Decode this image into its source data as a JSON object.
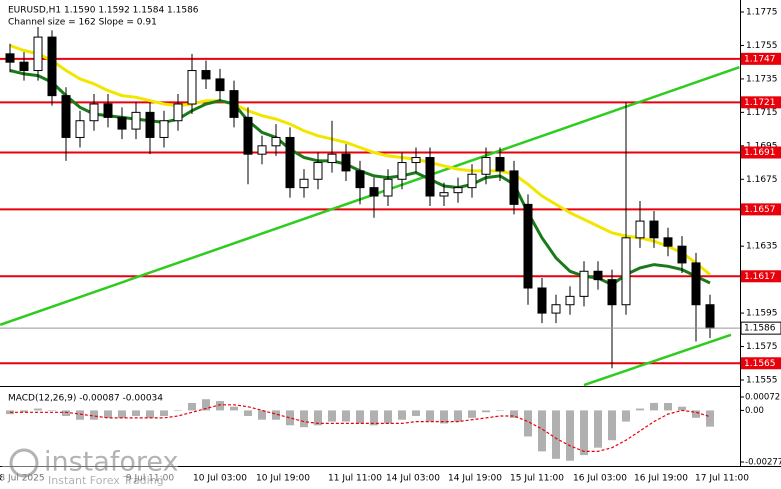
{
  "chart_data": {
    "type": "candlestick",
    "title": "EURUSD,H1  1.1590 1.1592 1.1584 1.1586",
    "subtitle": "Channel size = 162 Slope = 0.91",
    "ylim": [
      1.1555,
      1.1775
    ],
    "yticks": [
      1.1775,
      1.1755,
      1.1735,
      1.1715,
      1.1695,
      1.1675,
      1.1655,
      1.1635,
      1.1615,
      1.1595,
      1.1575,
      1.1555
    ],
    "levels": [
      1.1747,
      1.1721,
      1.1691,
      1.1657,
      1.1617,
      1.1565
    ],
    "level_color": "#e8000b",
    "last_price": 1.1586,
    "time_labels": [
      "8 Jul 2025",
      "9 Jul 11:00",
      "10 Jul 03:00",
      "10 Jul 19:00",
      "11 Jul 11:00",
      "14 Jul 03:00",
      "14 Jul 19:00",
      "15 Jul 11:00",
      "16 Jul 03:00",
      "16 Jul 19:00",
      "17 Jul 11:00"
    ],
    "open": [
      1.175,
      1.1745,
      1.174,
      1.176,
      1.1725,
      1.17,
      1.171,
      1.172,
      1.1712,
      1.1705,
      1.1715,
      1.17,
      1.171,
      1.172,
      1.174,
      1.1735,
      1.1728,
      1.1712,
      1.169,
      1.1695,
      1.17,
      1.167,
      1.1675,
      1.1685,
      1.169,
      1.168,
      1.167,
      1.1665,
      1.1675,
      1.1685,
      1.1688,
      1.1665,
      1.1667,
      1.167,
      1.1678,
      1.1688,
      1.168,
      1.166,
      1.161,
      1.1595,
      1.16,
      1.1605,
      1.162,
      1.1615,
      1.16,
      1.164,
      1.165,
      1.164,
      1.1635,
      1.1625,
      1.16
    ],
    "high": [
      1.1756,
      1.1751,
      1.1766,
      1.1764,
      1.173,
      1.1716,
      1.1726,
      1.1726,
      1.1718,
      1.1721,
      1.1721,
      1.1716,
      1.1726,
      1.175,
      1.1746,
      1.1741,
      1.1734,
      1.1718,
      1.1701,
      1.1708,
      1.1706,
      1.1681,
      1.1691,
      1.171,
      1.1696,
      1.1686,
      1.1676,
      1.1681,
      1.1691,
      1.1694,
      1.1694,
      1.1673,
      1.1676,
      1.1684,
      1.1694,
      1.1694,
      1.1686,
      1.1666,
      1.1616,
      1.1606,
      1.1611,
      1.1626,
      1.1626,
      1.1621,
      1.1721,
      1.1662,
      1.1656,
      1.1646,
      1.1641,
      1.1631,
      1.1606
    ],
    "low": [
      1.1739,
      1.1734,
      1.1734,
      1.1719,
      1.1686,
      1.1694,
      1.1704,
      1.1706,
      1.1699,
      1.1699,
      1.169,
      1.1694,
      1.1704,
      1.1714,
      1.1729,
      1.1722,
      1.1706,
      1.1672,
      1.1684,
      1.1689,
      1.1664,
      1.1664,
      1.1669,
      1.1679,
      1.1674,
      1.166,
      1.1652,
      1.1659,
      1.1669,
      1.1679,
      1.1659,
      1.1659,
      1.1661,
      1.1664,
      1.1672,
      1.1674,
      1.1654,
      1.16,
      1.1589,
      1.1589,
      1.1594,
      1.1599,
      1.1609,
      1.1562,
      1.1594,
      1.1634,
      1.1634,
      1.1629,
      1.1619,
      1.1578,
      1.158
    ],
    "close": [
      1.1745,
      1.174,
      1.176,
      1.1725,
      1.17,
      1.171,
      1.172,
      1.1712,
      1.1705,
      1.1715,
      1.17,
      1.171,
      1.172,
      1.174,
      1.1735,
      1.1728,
      1.1712,
      1.169,
      1.1695,
      1.17,
      1.167,
      1.1675,
      1.1685,
      1.169,
      1.168,
      1.167,
      1.1665,
      1.1675,
      1.1685,
      1.1688,
      1.1665,
      1.1667,
      1.167,
      1.1678,
      1.1688,
      1.168,
      1.166,
      1.161,
      1.1595,
      1.16,
      1.1605,
      1.162,
      1.1615,
      1.16,
      1.164,
      1.165,
      1.164,
      1.1635,
      1.1625,
      1.16,
      1.1586
    ],
    "series": [
      {
        "color": "#f2e600",
        "values": [
          1.1755,
          1.1752,
          1.175,
          1.1746,
          1.174,
          1.1735,
          1.1732,
          1.1728,
          1.1725,
          1.1724,
          1.1722,
          1.172,
          1.1719,
          1.172,
          1.1722,
          1.1722,
          1.172,
          1.1716,
          1.1713,
          1.1711,
          1.1708,
          1.1704,
          1.1701,
          1.1699,
          1.1697,
          1.1694,
          1.1691,
          1.1689,
          1.1688,
          1.1687,
          1.1685,
          1.1683,
          1.1681,
          1.168,
          1.168,
          1.168,
          1.1678,
          1.1672,
          1.1665,
          1.166,
          1.1655,
          1.1651,
          1.1647,
          1.1643,
          1.1641,
          1.164,
          1.1638,
          1.1635,
          1.1631,
          1.1625,
          1.1618
        ]
      },
      {
        "color": "#1a7a1a",
        "values": [
          1.174,
          1.1738,
          1.1737,
          1.1733,
          1.1725,
          1.1718,
          1.1714,
          1.1713,
          1.1712,
          1.1711,
          1.171,
          1.1709,
          1.1711,
          1.1716,
          1.172,
          1.1722,
          1.172,
          1.171,
          1.1703,
          1.17,
          1.1693,
          1.1688,
          1.1686,
          1.1686,
          1.1684,
          1.168,
          1.1677,
          1.1676,
          1.1677,
          1.1679,
          1.1675,
          1.1671,
          1.167,
          1.1672,
          1.1676,
          1.1677,
          1.1672,
          1.1655,
          1.164,
          1.1628,
          1.162,
          1.1617,
          1.1616,
          1.1612,
          1.1618,
          1.1622,
          1.1624,
          1.1623,
          1.1621,
          1.1617,
          1.1613
        ]
      }
    ],
    "trendlines": [
      {
        "color": "#2ecc1f",
        "x": [
          -0.7,
          52.1
        ],
        "values": [
          1.1588,
          1.1742
        ]
      },
      {
        "color": "#2ecc1f",
        "x": [
          41,
          51.5
        ],
        "values": [
          1.1552,
          1.1582
        ]
      }
    ],
    "macd": {
      "title": "MACD(12,26,9) -0.00087 -0.00034",
      "ylim": [
        -0.00277,
        0.00072
      ],
      "yticks": [
        0.00072,
        {
          "value": 0,
          "label": "0.00"
        },
        -0.00277
      ],
      "histogram": [
        -0.0002,
        -0.0001,
        0.0001,
        0.0,
        -0.0003,
        -0.0005,
        -0.0005,
        -0.0004,
        -0.0004,
        -0.0003,
        -0.0004,
        -0.0003,
        0.0,
        0.0004,
        0.0006,
        0.0005,
        0.0002,
        -0.0003,
        -0.0005,
        -0.0005,
        -0.0008,
        -0.0009,
        -0.0008,
        -0.0006,
        -0.0006,
        -0.0007,
        -0.0008,
        -0.0007,
        -0.0005,
        -0.0003,
        -0.0006,
        -0.0007,
        -0.0006,
        -0.0004,
        -0.0001,
        0.0,
        -0.0004,
        -0.0014,
        -0.0022,
        -0.0026,
        -0.0027,
        -0.0024,
        -0.002,
        -0.0016,
        -0.0006,
        0.0001,
        0.0004,
        0.0004,
        0.0002,
        -0.0004,
        -0.00087
      ],
      "signal": [
        -0.0001,
        -0.0001,
        -0.0001,
        -0.0001,
        -0.0001,
        -0.0002,
        -0.0003,
        -0.0004,
        -0.0004,
        -0.0004,
        -0.0004,
        -0.0004,
        -0.0003,
        -0.0001,
        0.0001,
        0.0003,
        0.0003,
        0.0002,
        0.0,
        -0.0002,
        -0.0004,
        -0.0006,
        -0.0007,
        -0.0007,
        -0.0007,
        -0.0007,
        -0.0007,
        -0.0007,
        -0.0007,
        -0.0006,
        -0.0006,
        -0.0006,
        -0.0006,
        -0.0005,
        -0.0004,
        -0.0003,
        -0.0003,
        -0.0006,
        -0.001,
        -0.0015,
        -0.0019,
        -0.0022,
        -0.0022,
        -0.002,
        -0.0016,
        -0.0011,
        -0.0006,
        -0.0002,
        0.0,
        -0.0001,
        -0.00034
      ],
      "histogram_color": "#b0b0b0",
      "signal_color": "#e8000b"
    }
  },
  "watermark": {
    "brand": "instaforex",
    "tagline": "Instant Forex Trading"
  }
}
